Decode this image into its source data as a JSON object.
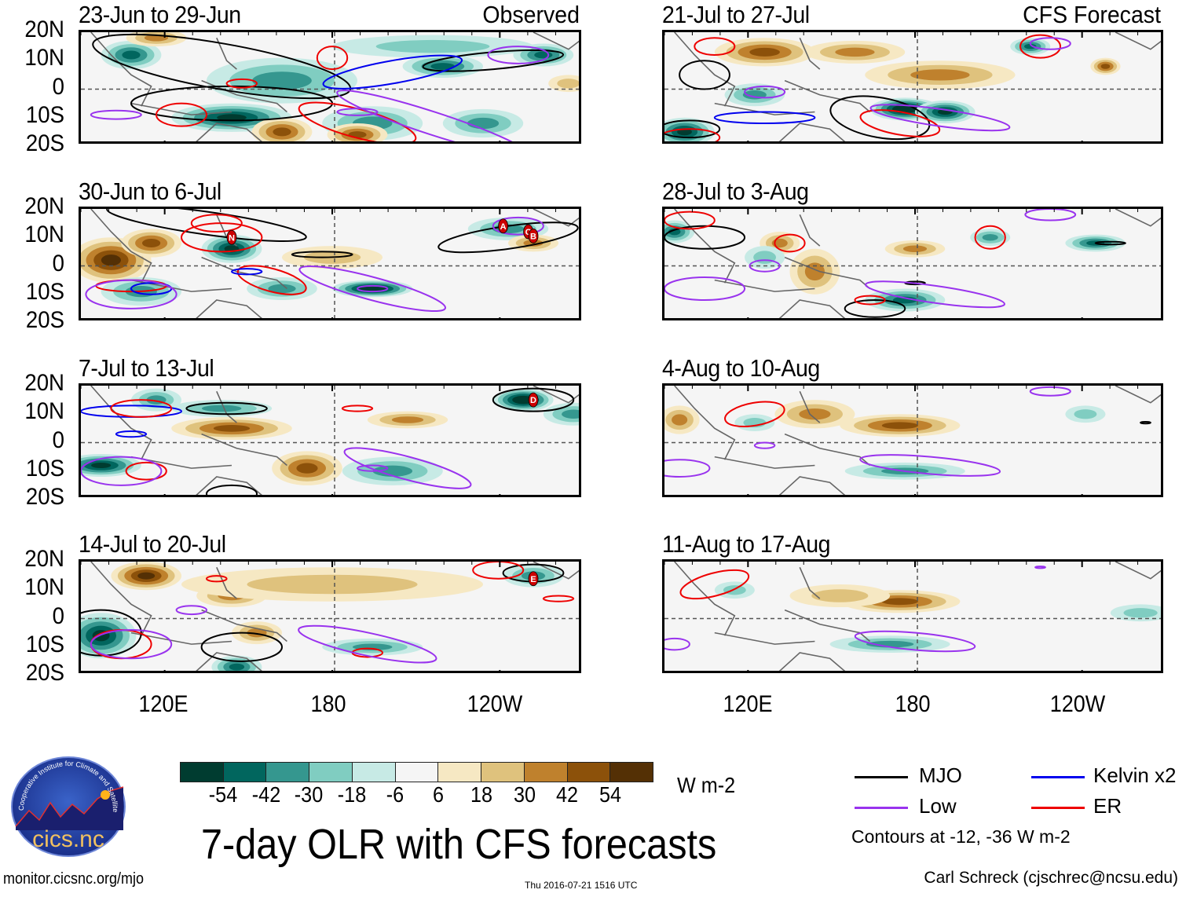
{
  "chart_data": {
    "type": "heatmap",
    "title": "7-day OLR with CFS forecasts",
    "variable": "OLR anomaly",
    "units": "W m-2",
    "colorbar": {
      "ticks": [
        -54,
        -42,
        -30,
        -18,
        -6,
        6,
        18,
        30,
        42,
        54
      ],
      "colors": [
        "#003c30",
        "#01665e",
        "#35978f",
        "#80cdc1",
        "#c7eae5",
        "#f5f5f5",
        "#f6e8c3",
        "#dfc27d",
        "#bf812d",
        "#8c510a",
        "#543005"
      ]
    },
    "lat_ticks": [
      "20N",
      "10N",
      "0",
      "10S",
      "20S"
    ],
    "lat_range": [
      -20,
      20
    ],
    "lon_ticks": [
      "120E",
      "180",
      "120W"
    ],
    "lon_range_deg_east": [
      90,
      270
    ],
    "contour_levels": [
      -12,
      -36
    ],
    "contour_note": "Contours at -12, -36 W m-2",
    "legend": [
      {
        "name": "MJO",
        "color": "#000000"
      },
      {
        "name": "Kelvin x2",
        "color": "#0000ee"
      },
      {
        "name": "Low",
        "color": "#9933ee"
      },
      {
        "name": "ER",
        "color": "#ee0000"
      }
    ],
    "columns": [
      {
        "label": "Observed"
      },
      {
        "label": "CFS Forecast"
      }
    ],
    "panels": [
      {
        "period": "23-Jun to 29-Jun",
        "column": "Observed",
        "storm_markers": []
      },
      {
        "period": "30-Jun to 6-Jul",
        "column": "Observed",
        "storm_markers": [
          "N",
          "A",
          "C",
          "B"
        ]
      },
      {
        "period": "7-Jul to 13-Jul",
        "column": "Observed",
        "storm_markers": [
          "D"
        ]
      },
      {
        "period": "14-Jul to 20-Jul",
        "column": "Observed",
        "storm_markers": [
          "E"
        ]
      },
      {
        "period": "21-Jul to 27-Jul",
        "column": "CFS Forecast",
        "storm_markers": []
      },
      {
        "period": "28-Jul to 3-Aug",
        "column": "CFS Forecast",
        "storm_markers": []
      },
      {
        "period": "4-Aug to 10-Aug",
        "column": "CFS Forecast",
        "storm_markers": []
      },
      {
        "period": "11-Aug to 17-Aug",
        "column": "CFS Forecast",
        "storm_markers": []
      }
    ]
  },
  "footer": {
    "title": "7-day OLR with CFS forecasts",
    "units": "W m-2",
    "site_url": "monitor.cicsnc.org/mjo",
    "timestamp": "Thu 2016-07-21 1516 UTC",
    "credit": "Carl Schreck (cjschrec@ncsu.edu)",
    "contour_note": "Contours at -12, -36 W m-2",
    "logo_text": "cics.nc",
    "logo_arc_text": "Cooperative Institute for Climate and Satellites"
  }
}
